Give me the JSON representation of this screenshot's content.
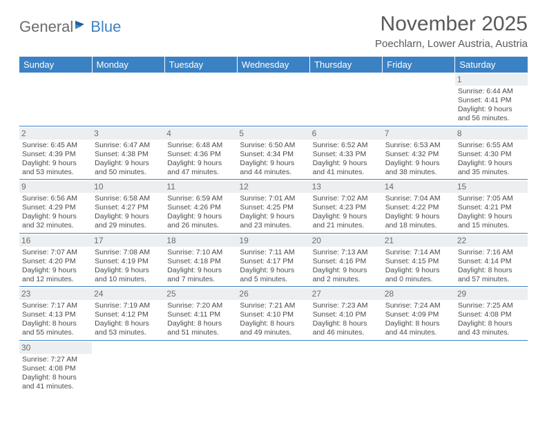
{
  "logo": {
    "text1": "General",
    "text2": "Blue"
  },
  "title": "November 2025",
  "location": "Poechlarn, Lower Austria, Austria",
  "colors": {
    "header_bg": "#3b82c4",
    "header_text": "#ffffff",
    "body_text": "#4a4a4a",
    "daynum_bg": "#eceff1",
    "title_text": "#595959"
  },
  "day_headers": [
    "Sunday",
    "Monday",
    "Tuesday",
    "Wednesday",
    "Thursday",
    "Friday",
    "Saturday"
  ],
  "weeks": [
    [
      null,
      null,
      null,
      null,
      null,
      null,
      {
        "n": "1",
        "sr": "6:44 AM",
        "ss": "4:41 PM",
        "dl": "9 hours and 56 minutes."
      }
    ],
    [
      {
        "n": "2",
        "sr": "6:45 AM",
        "ss": "4:39 PM",
        "dl": "9 hours and 53 minutes."
      },
      {
        "n": "3",
        "sr": "6:47 AM",
        "ss": "4:38 PM",
        "dl": "9 hours and 50 minutes."
      },
      {
        "n": "4",
        "sr": "6:48 AM",
        "ss": "4:36 PM",
        "dl": "9 hours and 47 minutes."
      },
      {
        "n": "5",
        "sr": "6:50 AM",
        "ss": "4:34 PM",
        "dl": "9 hours and 44 minutes."
      },
      {
        "n": "6",
        "sr": "6:52 AM",
        "ss": "4:33 PM",
        "dl": "9 hours and 41 minutes."
      },
      {
        "n": "7",
        "sr": "6:53 AM",
        "ss": "4:32 PM",
        "dl": "9 hours and 38 minutes."
      },
      {
        "n": "8",
        "sr": "6:55 AM",
        "ss": "4:30 PM",
        "dl": "9 hours and 35 minutes."
      }
    ],
    [
      {
        "n": "9",
        "sr": "6:56 AM",
        "ss": "4:29 PM",
        "dl": "9 hours and 32 minutes."
      },
      {
        "n": "10",
        "sr": "6:58 AM",
        "ss": "4:27 PM",
        "dl": "9 hours and 29 minutes."
      },
      {
        "n": "11",
        "sr": "6:59 AM",
        "ss": "4:26 PM",
        "dl": "9 hours and 26 minutes."
      },
      {
        "n": "12",
        "sr": "7:01 AM",
        "ss": "4:25 PM",
        "dl": "9 hours and 23 minutes."
      },
      {
        "n": "13",
        "sr": "7:02 AM",
        "ss": "4:23 PM",
        "dl": "9 hours and 21 minutes."
      },
      {
        "n": "14",
        "sr": "7:04 AM",
        "ss": "4:22 PM",
        "dl": "9 hours and 18 minutes."
      },
      {
        "n": "15",
        "sr": "7:05 AM",
        "ss": "4:21 PM",
        "dl": "9 hours and 15 minutes."
      }
    ],
    [
      {
        "n": "16",
        "sr": "7:07 AM",
        "ss": "4:20 PM",
        "dl": "9 hours and 12 minutes."
      },
      {
        "n": "17",
        "sr": "7:08 AM",
        "ss": "4:19 PM",
        "dl": "9 hours and 10 minutes."
      },
      {
        "n": "18",
        "sr": "7:10 AM",
        "ss": "4:18 PM",
        "dl": "9 hours and 7 minutes."
      },
      {
        "n": "19",
        "sr": "7:11 AM",
        "ss": "4:17 PM",
        "dl": "9 hours and 5 minutes."
      },
      {
        "n": "20",
        "sr": "7:13 AM",
        "ss": "4:16 PM",
        "dl": "9 hours and 2 minutes."
      },
      {
        "n": "21",
        "sr": "7:14 AM",
        "ss": "4:15 PM",
        "dl": "9 hours and 0 minutes."
      },
      {
        "n": "22",
        "sr": "7:16 AM",
        "ss": "4:14 PM",
        "dl": "8 hours and 57 minutes."
      }
    ],
    [
      {
        "n": "23",
        "sr": "7:17 AM",
        "ss": "4:13 PM",
        "dl": "8 hours and 55 minutes."
      },
      {
        "n": "24",
        "sr": "7:19 AM",
        "ss": "4:12 PM",
        "dl": "8 hours and 53 minutes."
      },
      {
        "n": "25",
        "sr": "7:20 AM",
        "ss": "4:11 PM",
        "dl": "8 hours and 51 minutes."
      },
      {
        "n": "26",
        "sr": "7:21 AM",
        "ss": "4:10 PM",
        "dl": "8 hours and 49 minutes."
      },
      {
        "n": "27",
        "sr": "7:23 AM",
        "ss": "4:10 PM",
        "dl": "8 hours and 46 minutes."
      },
      {
        "n": "28",
        "sr": "7:24 AM",
        "ss": "4:09 PM",
        "dl": "8 hours and 44 minutes."
      },
      {
        "n": "29",
        "sr": "7:25 AM",
        "ss": "4:08 PM",
        "dl": "8 hours and 43 minutes."
      }
    ],
    [
      {
        "n": "30",
        "sr": "7:27 AM",
        "ss": "4:08 PM",
        "dl": "8 hours and 41 minutes."
      },
      null,
      null,
      null,
      null,
      null,
      null
    ]
  ],
  "labels": {
    "sunrise": "Sunrise:",
    "sunset": "Sunset:",
    "daylight": "Daylight:"
  }
}
